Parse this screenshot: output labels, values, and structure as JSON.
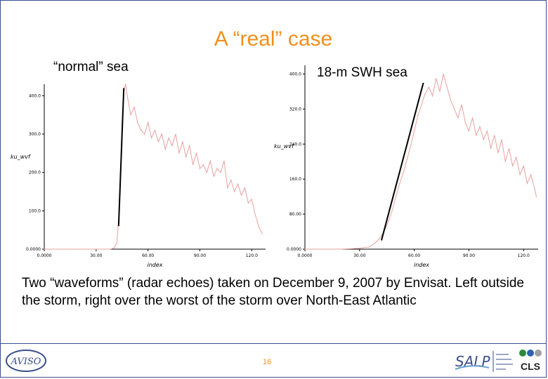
{
  "slide": {
    "title": "A “real” case",
    "caption": "Two “waveforms” (radar echoes) taken on December 9, 2007 by Envisat. Left outside the storm, right over the worst of the storm over North-East Atlantic",
    "page_number": "16"
  },
  "colors": {
    "title": "#f0901c",
    "series": "#e8a0a0",
    "annotation": "#000000",
    "frame": "#3a4f8a"
  },
  "logos": {
    "left": "AVISO",
    "center": "SALP",
    "right": "CLS"
  },
  "chart_data": [
    {
      "type": "line",
      "panel_label": "“normal” sea",
      "xlabel": "index",
      "ylabel": "ku_wvf",
      "xlim": [
        0,
        128
      ],
      "ylim": [
        0,
        430
      ],
      "xticks": [
        "0.0000",
        "30.00",
        "60.00",
        "90.00",
        "120.0"
      ],
      "yticks": [
        "0.0000",
        "100.0",
        "200.0",
        "300.0",
        "400.0"
      ],
      "xtick_values": [
        0,
        30,
        60,
        90,
        120
      ],
      "ytick_values": [
        0,
        100,
        200,
        300,
        400
      ],
      "series": [
        {
          "x": [
            0,
            10,
            20,
            30,
            38,
            40,
            42,
            43,
            44,
            45,
            46,
            47,
            48,
            50,
            52,
            54,
            56,
            58,
            60,
            62,
            64,
            66,
            68,
            70,
            72,
            74,
            76,
            78,
            80,
            82,
            84,
            86,
            88,
            90,
            92,
            94,
            96,
            98,
            100,
            102,
            104,
            106,
            108,
            110,
            112,
            114,
            116,
            118,
            120,
            122,
            124,
            126
          ],
          "values": [
            0,
            0,
            0,
            0,
            0,
            2,
            15,
            80,
            200,
            330,
            410,
            430,
            400,
            350,
            370,
            330,
            310,
            300,
            330,
            290,
            310,
            280,
            300,
            260,
            290,
            270,
            300,
            250,
            280,
            240,
            270,
            220,
            250,
            210,
            220,
            200,
            230,
            190,
            210,
            200,
            230,
            160,
            180,
            150,
            170,
            140,
            160,
            120,
            130,
            90,
            60,
            40
          ]
        }
      ],
      "annotation_line": {
        "x": [
          43,
          46
        ],
        "y": [
          60,
          420
        ]
      }
    },
    {
      "type": "line",
      "panel_label": "18-m SWH sea",
      "xlabel": "index",
      "ylabel": "ku_wvf",
      "xlim": [
        0,
        128
      ],
      "ylim": [
        0,
        420
      ],
      "xticks": [
        "0.0000",
        "30.00",
        "60.00",
        "90.00",
        "120.0"
      ],
      "yticks": [
        "0.0000",
        "80.00",
        "160.0",
        "240.0",
        "320.0",
        "400.0"
      ],
      "xtick_values": [
        0,
        30,
        60,
        90,
        120
      ],
      "ytick_values": [
        0,
        80,
        160,
        240,
        320,
        400
      ],
      "series": [
        {
          "x": [
            0,
            10,
            20,
            30,
            35,
            38,
            40,
            42,
            44,
            46,
            48,
            50,
            52,
            54,
            56,
            58,
            60,
            62,
            64,
            66,
            68,
            70,
            72,
            74,
            76,
            78,
            80,
            82,
            84,
            86,
            88,
            90,
            92,
            94,
            96,
            98,
            100,
            102,
            104,
            106,
            108,
            110,
            112,
            114,
            116,
            118,
            120,
            122,
            124,
            126,
            127
          ],
          "values": [
            0,
            0,
            0,
            2,
            5,
            12,
            20,
            30,
            45,
            65,
            90,
            120,
            150,
            175,
            205,
            235,
            270,
            305,
            330,
            355,
            370,
            350,
            390,
            360,
            400,
            370,
            340,
            320,
            300,
            330,
            290,
            270,
            300,
            260,
            280,
            250,
            270,
            230,
            260,
            220,
            250,
            200,
            230,
            190,
            210,
            170,
            190,
            150,
            170,
            140,
            120
          ]
        }
      ],
      "annotation_line": {
        "x": [
          42,
          65
        ],
        "y": [
          20,
          380
        ]
      }
    }
  ]
}
